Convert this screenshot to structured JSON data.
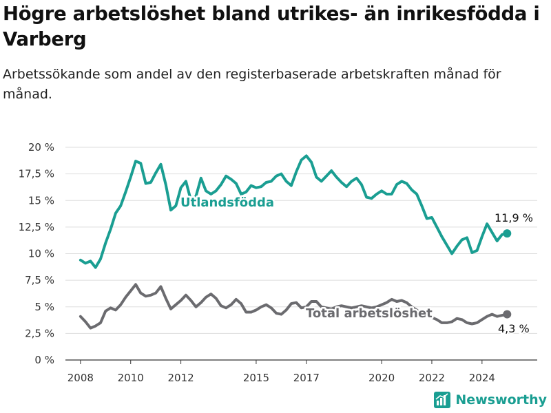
{
  "header": {
    "title": "Högre arbetslöshet bland utrikes- än inrikesfödda i Varberg",
    "subtitle": "Arbetssökande som andel av den registerbaserade arbetskraften månad för månad."
  },
  "brand": {
    "name": "Newsworthy",
    "icon": "newsworthy-logo-icon",
    "color": "#1a9e92"
  },
  "chart_data": {
    "type": "line",
    "title": "Högre arbetslöshet bland utrikes- än inrikesfödda i Varberg",
    "subtitle": "Arbetssökande som andel av den registerbaserade arbetskraften månad för månad.",
    "xlabel": "",
    "ylabel": "",
    "xlim": [
      2007.4,
      2026.2
    ],
    "ylim": [
      0,
      20
    ],
    "y_ticks": [
      {
        "value": 0,
        "label": "0 %"
      },
      {
        "value": 2.5,
        "label": "2,5 %"
      },
      {
        "value": 5,
        "label": "5 %"
      },
      {
        "value": 7.5,
        "label": "7,5 %"
      },
      {
        "value": 10,
        "label": "10 %"
      },
      {
        "value": 12.5,
        "label": "12,5 %"
      },
      {
        "value": 15,
        "label": "15 %"
      },
      {
        "value": 17.5,
        "label": "17,5 %"
      },
      {
        "value": 20,
        "label": "20 %"
      }
    ],
    "x_ticks": [
      {
        "value": 2008,
        "label": "2008"
      },
      {
        "value": 2010,
        "label": "2010"
      },
      {
        "value": 2012,
        "label": "2012"
      },
      {
        "value": 2015,
        "label": "2015"
      },
      {
        "value": 2017,
        "label": "2017"
      },
      {
        "value": 2020,
        "label": "2020"
      },
      {
        "value": 2022,
        "label": "2022"
      },
      {
        "value": 2024,
        "label": "2024"
      }
    ],
    "grid": "horizontal",
    "legend": "inline",
    "series": [
      {
        "name": "Utlandsfödda",
        "color": "#1a9e92",
        "end_label": "11,9 %",
        "x": [
          2008.0,
          2008.2,
          2008.4,
          2008.6,
          2008.8,
          2009.0,
          2009.2,
          2009.4,
          2009.6,
          2009.8,
          2010.0,
          2010.2,
          2010.4,
          2010.6,
          2010.8,
          2011.0,
          2011.2,
          2011.4,
          2011.6,
          2011.8,
          2012.0,
          2012.2,
          2012.4,
          2012.6,
          2012.8,
          2013.0,
          2013.2,
          2013.4,
          2013.6,
          2013.8,
          2014.0,
          2014.2,
          2014.4,
          2014.6,
          2014.8,
          2015.0,
          2015.2,
          2015.4,
          2015.6,
          2015.8,
          2016.0,
          2016.2,
          2016.4,
          2016.6,
          2016.8,
          2017.0,
          2017.2,
          2017.4,
          2017.6,
          2017.8,
          2018.0,
          2018.2,
          2018.4,
          2018.6,
          2018.8,
          2019.0,
          2019.2,
          2019.4,
          2019.6,
          2019.8,
          2020.0,
          2020.2,
          2020.4,
          2020.6,
          2020.8,
          2021.0,
          2021.2,
          2021.4,
          2021.6,
          2021.8,
          2022.0,
          2022.2,
          2022.4,
          2022.6,
          2022.8,
          2023.0,
          2023.2,
          2023.4,
          2023.6,
          2023.8,
          2024.0,
          2024.2,
          2024.4,
          2024.6,
          2024.8,
          2025.0
        ],
        "values": [
          9.4,
          9.1,
          9.3,
          8.7,
          9.5,
          11.0,
          12.3,
          13.8,
          14.5,
          15.8,
          17.2,
          18.7,
          18.5,
          16.6,
          16.7,
          17.6,
          18.4,
          16.5,
          14.1,
          14.5,
          16.2,
          16.8,
          15.0,
          15.4,
          17.1,
          15.9,
          15.6,
          15.9,
          16.5,
          17.3,
          17.0,
          16.6,
          15.6,
          15.8,
          16.4,
          16.2,
          16.3,
          16.7,
          16.8,
          17.3,
          17.5,
          16.8,
          16.4,
          17.7,
          18.8,
          19.2,
          18.6,
          17.2,
          16.8,
          17.3,
          17.8,
          17.2,
          16.7,
          16.3,
          16.8,
          17.1,
          16.5,
          15.3,
          15.2,
          15.6,
          15.9,
          15.6,
          15.6,
          16.5,
          16.8,
          16.6,
          16.0,
          15.6,
          14.5,
          13.3,
          13.4,
          12.5,
          11.6,
          10.8,
          10.0,
          10.7,
          11.3,
          11.5,
          10.1,
          10.3,
          11.6,
          12.8,
          12.0,
          11.2,
          11.8,
          11.9
        ]
      },
      {
        "name": "Total arbetslöshet",
        "color": "#6b6b6f",
        "end_label": "4,3 %",
        "x": [
          2008.0,
          2008.2,
          2008.4,
          2008.6,
          2008.8,
          2009.0,
          2009.2,
          2009.4,
          2009.6,
          2009.8,
          2010.0,
          2010.2,
          2010.4,
          2010.6,
          2010.8,
          2011.0,
          2011.2,
          2011.4,
          2011.6,
          2011.8,
          2012.0,
          2012.2,
          2012.4,
          2012.6,
          2012.8,
          2013.0,
          2013.2,
          2013.4,
          2013.6,
          2013.8,
          2014.0,
          2014.2,
          2014.4,
          2014.6,
          2014.8,
          2015.0,
          2015.2,
          2015.4,
          2015.6,
          2015.8,
          2016.0,
          2016.2,
          2016.4,
          2016.6,
          2016.8,
          2017.0,
          2017.2,
          2017.4,
          2017.6,
          2017.8,
          2018.0,
          2018.2,
          2018.4,
          2018.6,
          2018.8,
          2019.0,
          2019.2,
          2019.4,
          2019.6,
          2019.8,
          2020.0,
          2020.2,
          2020.4,
          2020.6,
          2020.8,
          2021.0,
          2021.2,
          2021.4,
          2021.6,
          2021.8,
          2022.0,
          2022.2,
          2022.4,
          2022.6,
          2022.8,
          2023.0,
          2023.2,
          2023.4,
          2023.6,
          2023.8,
          2024.0,
          2024.2,
          2024.4,
          2024.6,
          2024.8,
          2025.0
        ],
        "values": [
          4.1,
          3.6,
          3.0,
          3.2,
          3.5,
          4.6,
          4.9,
          4.7,
          5.2,
          5.9,
          6.5,
          7.1,
          6.3,
          6.0,
          6.1,
          6.3,
          6.9,
          5.8,
          4.8,
          5.2,
          5.6,
          6.1,
          5.6,
          5.0,
          5.4,
          5.9,
          6.2,
          5.8,
          5.1,
          4.9,
          5.2,
          5.7,
          5.3,
          4.5,
          4.5,
          4.7,
          5.0,
          5.2,
          4.9,
          4.4,
          4.3,
          4.7,
          5.3,
          5.4,
          4.9,
          5.0,
          5.5,
          5.5,
          5.0,
          4.9,
          4.8,
          5.0,
          5.1,
          5.0,
          4.9,
          5.0,
          5.1,
          5.0,
          4.9,
          5.0,
          5.2,
          5.4,
          5.7,
          5.5,
          5.6,
          5.4,
          5.0,
          4.7,
          4.3,
          4.2,
          4.0,
          3.8,
          3.5,
          3.5,
          3.6,
          3.9,
          3.8,
          3.5,
          3.4,
          3.5,
          3.8,
          4.1,
          4.3,
          4.1,
          4.2,
          4.3
        ]
      }
    ]
  }
}
